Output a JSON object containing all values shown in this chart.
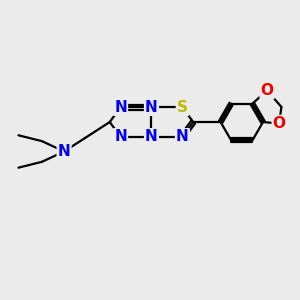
{
  "background_color": "#ebebeb",
  "atom_colors": {
    "C": "#000000",
    "N": "#0000ee",
    "S": "#bbbb00",
    "O": "#ee0000"
  },
  "font_size_atom": 11,
  "fig_size": [
    3.0,
    3.0
  ],
  "dpi": 100
}
